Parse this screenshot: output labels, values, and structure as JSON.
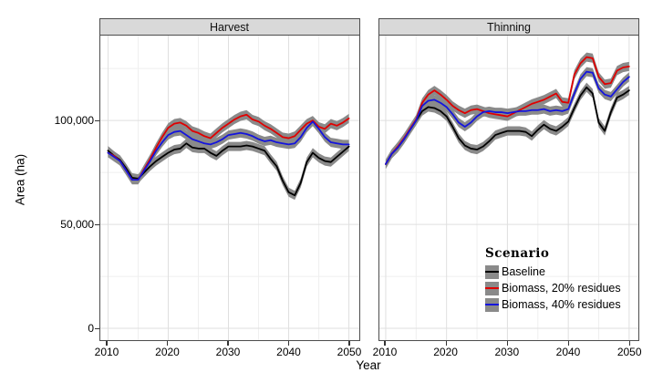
{
  "figure": {
    "panels": [
      {
        "title": "Harvest"
      },
      {
        "title": "Thinning"
      }
    ],
    "y_axis": {
      "title": "Area (ha)",
      "tick_labels": [
        "0",
        "50,000",
        "100,000"
      ]
    },
    "x_axis": {
      "title": "Year",
      "tick_labels": [
        "2010",
        "2020",
        "2030",
        "2040",
        "2050"
      ]
    },
    "legend": {
      "title": "Scenario",
      "entries": [
        {
          "label": "Baseline",
          "color": "#000000"
        },
        {
          "label": "Biomass, 20% residues",
          "color": "#e00000"
        },
        {
          "label": "Biomass, 40% residues",
          "color": "#1414dd"
        }
      ]
    },
    "colors": {
      "ribbon": "#8a8a8a",
      "strip_bg": "#d9d9d9",
      "panel_border": "#4d4d4d",
      "grid_major": "#dfdfdf",
      "grid_minor": "#efefef"
    }
  },
  "chart_data": [
    {
      "type": "line",
      "title": "Harvest",
      "xlabel": "Year",
      "ylabel": "Area (ha)",
      "ylim": [
        0,
        140000
      ],
      "yticks": [
        0,
        50000,
        100000
      ],
      "yticks_minor": [
        25000,
        75000,
        125000
      ],
      "xticks": [
        2010,
        2020,
        2030,
        2040,
        2050
      ],
      "xticks_minor": [
        2015,
        2025,
        2035,
        2045
      ],
      "grid": true,
      "ribbon_halfwidth": 2200,
      "x": [
        2010,
        2011,
        2012,
        2013,
        2014,
        2015,
        2016,
        2017,
        2018,
        2019,
        2020,
        2021,
        2022,
        2023,
        2024,
        2025,
        2026,
        2027,
        2028,
        2029,
        2030,
        2031,
        2032,
        2033,
        2034,
        2035,
        2036,
        2037,
        2038,
        2039,
        2040,
        2041,
        2042,
        2043,
        2044,
        2045,
        2046,
        2047,
        2048,
        2049,
        2050
      ],
      "series": [
        {
          "name": "Baseline",
          "color": "#000000",
          "values": [
            85500,
            83000,
            81000,
            77000,
            72500,
            72000,
            75000,
            78000,
            80500,
            82500,
            84500,
            86000,
            86500,
            89000,
            87000,
            86500,
            86500,
            84500,
            83000,
            85500,
            87500,
            87500,
            87500,
            88000,
            87500,
            86500,
            85500,
            81500,
            78000,
            71000,
            65500,
            64000,
            70000,
            80000,
            84500,
            82000,
            80500,
            80000,
            82500,
            85000,
            87500
          ]
        },
        {
          "name": "Biomass, 20% residues",
          "color": "#e00000",
          "values": [
            84500,
            83000,
            80500,
            76000,
            71500,
            71500,
            76500,
            81500,
            87000,
            92000,
            96500,
            98500,
            99000,
            97500,
            95000,
            94000,
            92500,
            91500,
            94000,
            96500,
            98500,
            100500,
            102000,
            102800,
            100500,
            99500,
            97500,
            96000,
            94000,
            92000,
            91500,
            92500,
            95500,
            98500,
            100000,
            97000,
            96000,
            98500,
            97500,
            99000,
            101000
          ]
        },
        {
          "name": "Biomass, 40% residues",
          "color": "#1414dd",
          "values": [
            84500,
            82500,
            80500,
            76000,
            71500,
            71500,
            76000,
            80500,
            85500,
            89500,
            93000,
            94500,
            95000,
            93000,
            91000,
            90000,
            89000,
            88500,
            89500,
            91000,
            93000,
            93500,
            94000,
            93500,
            92500,
            91000,
            90000,
            90500,
            89500,
            89000,
            88500,
            89000,
            92000,
            96500,
            99500,
            96000,
            92000,
            89500,
            89000,
            88500,
            88500
          ]
        }
      ]
    },
    {
      "type": "line",
      "title": "Thinning",
      "xlabel": "Year",
      "ylabel": "Area (ha)",
      "ylim": [
        0,
        140000
      ],
      "yticks": [
        0,
        50000,
        100000
      ],
      "yticks_minor": [
        25000,
        75000,
        125000
      ],
      "xticks": [
        2010,
        2020,
        2030,
        2040,
        2050
      ],
      "xticks_minor": [
        2015,
        2025,
        2035,
        2045
      ],
      "grid": true,
      "ribbon_halfwidth": 2200,
      "x": [
        2010,
        2011,
        2012,
        2013,
        2014,
        2015,
        2016,
        2017,
        2018,
        2019,
        2020,
        2021,
        2022,
        2023,
        2024,
        2025,
        2026,
        2027,
        2028,
        2029,
        2030,
        2031,
        2032,
        2033,
        2034,
        2035,
        2036,
        2037,
        2038,
        2039,
        2040,
        2041,
        2042,
        2043,
        2044,
        2045,
        2046,
        2047,
        2048,
        2049,
        2050
      ],
      "series": [
        {
          "name": "Baseline",
          "color": "#000000",
          "values": [
            79000,
            84000,
            87000,
            91000,
            95500,
            100000,
            104500,
            106500,
            106000,
            104500,
            102000,
            97000,
            91500,
            88000,
            86500,
            86000,
            87500,
            90000,
            93000,
            94000,
            95000,
            95000,
            95000,
            94500,
            92500,
            95500,
            98000,
            96000,
            95000,
            97000,
            99500,
            106000,
            112000,
            116000,
            113000,
            99000,
            95000,
            104000,
            111000,
            112500,
            114500
          ]
        },
        {
          "name": "Biomass, 20% residues",
          "color": "#e00000",
          "values": [
            79000,
            84000,
            87500,
            91500,
            96000,
            100500,
            108500,
            112500,
            114500,
            112500,
            110000,
            107000,
            105000,
            103500,
            105000,
            105500,
            104500,
            103500,
            103000,
            102500,
            102000,
            103500,
            105000,
            106500,
            108000,
            109000,
            110000,
            111500,
            113000,
            109000,
            108500,
            122000,
            127500,
            130500,
            130000,
            121000,
            117500,
            118000,
            124000,
            125500,
            126000
          ]
        },
        {
          "name": "Biomass, 40% residues",
          "color": "#1414dd",
          "values": [
            79000,
            84000,
            87000,
            91000,
            95500,
            100000,
            107000,
            109500,
            110000,
            108500,
            106500,
            103000,
            99000,
            97000,
            99000,
            102000,
            104000,
            104500,
            104000,
            104000,
            103500,
            104000,
            104500,
            104500,
            105000,
            105000,
            105500,
            104500,
            105000,
            104500,
            105500,
            113000,
            120000,
            123500,
            123000,
            115500,
            112500,
            111500,
            115000,
            118500,
            121000
          ]
        }
      ]
    }
  ]
}
